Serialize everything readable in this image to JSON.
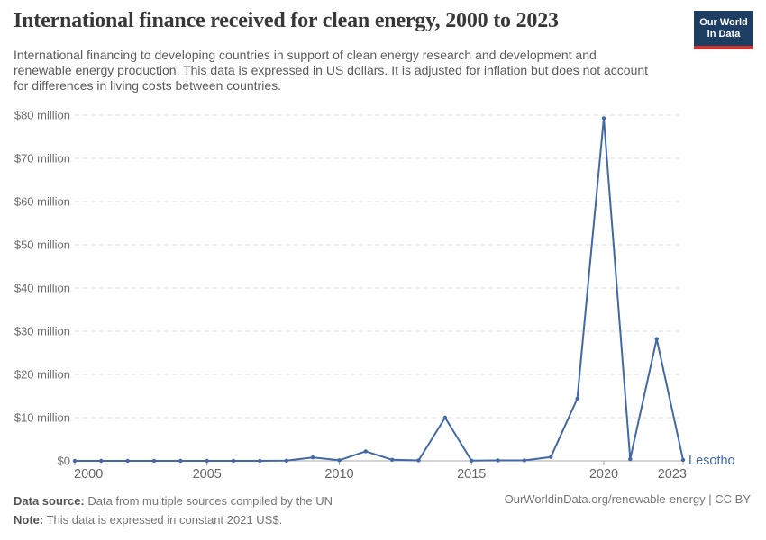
{
  "header": {
    "title": "International finance received for clean energy, 2000 to 2023",
    "subtitle": "International financing to developing countries in support of clean energy research and development and renewable energy production. This data is expressed in US dollars. It is adjusted for inflation but does not account for differences in living costs between countries.",
    "logo": {
      "line1": "Our World",
      "line2": "in Data",
      "bg_color": "#1d3d63",
      "accent_color": "#d0342c"
    }
  },
  "chart_data": {
    "type": "line",
    "title": "International finance received for clean energy, 2000 to 2023",
    "unit": "constant 2021 US$",
    "xlim": [
      2000,
      2023
    ],
    "ylim": [
      0,
      80
    ],
    "grid": true,
    "end_label": "Lesotho",
    "series": [
      {
        "name": "Lesotho",
        "color": "#4268a8",
        "x": [
          2000,
          2001,
          2002,
          2003,
          2004,
          2005,
          2006,
          2007,
          2008,
          2009,
          2010,
          2011,
          2012,
          2013,
          2014,
          2015,
          2016,
          2017,
          2018,
          2019,
          2020,
          2021,
          2022,
          2023
        ],
        "values": [
          0,
          0,
          0,
          0,
          0,
          0,
          0,
          0,
          0.05,
          0.8,
          0.15,
          2.2,
          0.25,
          0.1,
          10,
          0.05,
          0.1,
          0.1,
          0.9,
          14.4,
          79.3,
          0.4,
          28.2,
          0.2
        ]
      }
    ],
    "y_ticks": [
      {
        "value": 0,
        "label": "$0"
      },
      {
        "value": 10,
        "label": "$10 million"
      },
      {
        "value": 20,
        "label": "$20 million"
      },
      {
        "value": 30,
        "label": "$30 million"
      },
      {
        "value": 40,
        "label": "$40 million"
      },
      {
        "value": 50,
        "label": "$50 million"
      },
      {
        "value": 60,
        "label": "$60 million"
      },
      {
        "value": 70,
        "label": "$70 million"
      },
      {
        "value": 80,
        "label": "$80 million"
      }
    ],
    "x_ticks": [
      {
        "year": 2000,
        "label": "2000"
      },
      {
        "year": 2005,
        "label": "2005"
      },
      {
        "year": 2010,
        "label": "2010"
      },
      {
        "year": 2015,
        "label": "2015"
      },
      {
        "year": 2020,
        "label": "2020"
      },
      {
        "year": 2023,
        "label": "2023"
      }
    ],
    "legend_position": "end-of-line"
  },
  "footer": {
    "data_source_label": "Data source:",
    "data_source_text": " Data from multiple sources compiled by the UN",
    "note_label": "Note:",
    "note_text": " This data is expressed in constant 2021 US$.",
    "url_text": "OurWorldinData.org/renewable-energy | CC BY"
  },
  "colors": {
    "line": "#4268a8",
    "axis": "#a8a8a8",
    "gridline": "#dcdcdc",
    "y_label": "#6e6e6e",
    "x_label": "#666666",
    "title_text": "#383838",
    "subtitle_text": "#5b5b5b",
    "footer_text": "#757575"
  }
}
